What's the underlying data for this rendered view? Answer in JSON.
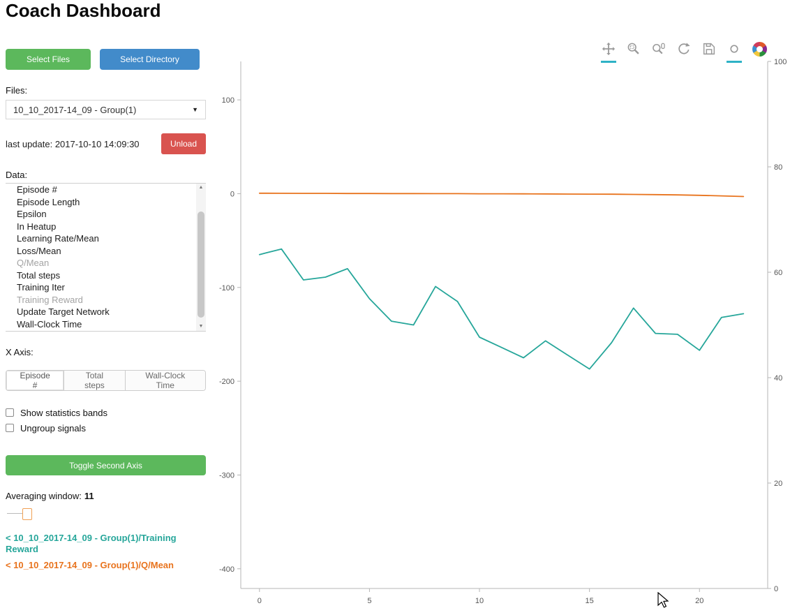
{
  "title": "Coach Dashboard",
  "colors": {
    "green": "#5cb85c",
    "blue": "#428bca",
    "red": "#d9534f",
    "teal": "#26a69a",
    "orange": "#e8731d",
    "toolbar_active": "#2eb2c6"
  },
  "sidebar": {
    "select_files": "Select Files",
    "select_directory": "Select Directory",
    "files_label": "Files:",
    "file_selected": "10_10_2017-14_09 - Group(1)",
    "last_update": "last update: 2017-10-10 14:09:30",
    "unload": "Unload",
    "data_label": "Data:",
    "data_items": [
      {
        "label": "Episode #",
        "dimmed": false
      },
      {
        "label": "Episode Length",
        "dimmed": false
      },
      {
        "label": "Epsilon",
        "dimmed": false
      },
      {
        "label": "In Heatup",
        "dimmed": false
      },
      {
        "label": "Learning Rate/Mean",
        "dimmed": false
      },
      {
        "label": "Loss/Mean",
        "dimmed": false
      },
      {
        "label": "Q/Mean",
        "dimmed": true
      },
      {
        "label": "Total steps",
        "dimmed": false
      },
      {
        "label": "Training Iter",
        "dimmed": false
      },
      {
        "label": "Training Reward",
        "dimmed": true
      },
      {
        "label": "Update Target Network",
        "dimmed": false
      },
      {
        "label": "Wall-Clock Time",
        "dimmed": false
      }
    ],
    "x_axis_label": "X Axis:",
    "x_axis_options": [
      "Episode #",
      "Total steps",
      "Wall-Clock Time"
    ],
    "x_axis_selected": "Episode #",
    "checkboxes": [
      {
        "label": "Show statistics bands",
        "checked": false
      },
      {
        "label": "Ungroup signals",
        "checked": false
      }
    ],
    "toggle_second_axis": "Toggle Second Axis",
    "averaging_label": "Averaging window:",
    "averaging_value": "11",
    "legend": [
      {
        "label": "< 10_10_2017-14_09 - Group(1)/Training Reward",
        "color": "#26a69a"
      },
      {
        "label": "< 10_10_2017-14_09 - Group(1)/Q/Mean",
        "color": "#e8731d"
      }
    ]
  },
  "toolbar": {
    "tools": [
      {
        "name": "pan",
        "active": true
      },
      {
        "name": "box-zoom",
        "active": false
      },
      {
        "name": "wheel-zoom",
        "active": false
      },
      {
        "name": "reset",
        "active": false
      },
      {
        "name": "save",
        "active": false
      },
      {
        "name": "hover",
        "active": true
      },
      {
        "name": "bokeh-logo",
        "active": false
      }
    ]
  },
  "chart_data": {
    "type": "line",
    "title": "",
    "xlabel": "",
    "ylabel_left": "",
    "ylabel_right": "",
    "grid": false,
    "legend_position": "sidebar",
    "x": [
      0,
      1,
      2,
      3,
      4,
      5,
      6,
      7,
      8,
      9,
      10,
      11,
      12,
      13,
      14,
      15,
      16,
      17,
      18,
      19,
      20,
      21,
      22
    ],
    "series": [
      {
        "name": "10_10_2017-14_09 - Group(1)/Training Reward",
        "color": "#26a69a",
        "axis": "left",
        "values": [
          -65,
          -59,
          -92,
          -89,
          -80,
          -112,
          -136,
          -140,
          -99,
          -115,
          -153,
          -164,
          -175,
          -157,
          -172,
          -187,
          -159,
          -122,
          -149,
          -150,
          -167,
          -132,
          -128
        ]
      },
      {
        "name": "10_10_2017-14_09 - Group(1)/Q/Mean",
        "color": "#e8731d",
        "axis": "left",
        "values": [
          0.5,
          0.4,
          0.3,
          0.3,
          0.2,
          0.2,
          0.1,
          0.1,
          0,
          0,
          -0.1,
          -0.1,
          -0.2,
          -0.3,
          -0.4,
          -0.5,
          -0.6,
          -0.8,
          -1,
          -1.3,
          -1.8,
          -2.4,
          -3
        ]
      }
    ],
    "x_axis": {
      "ticks": [
        0,
        5,
        10,
        15,
        20
      ],
      "range": [
        -0.85,
        23.1
      ]
    },
    "left_axis": {
      "ticks": [
        100,
        0,
        -100,
        -200,
        -300,
        -400
      ],
      "range": [
        -421,
        141
      ]
    },
    "right_axis": {
      "ticks": [
        0,
        20,
        40,
        60,
        80,
        100
      ],
      "range": [
        0,
        100
      ]
    }
  }
}
